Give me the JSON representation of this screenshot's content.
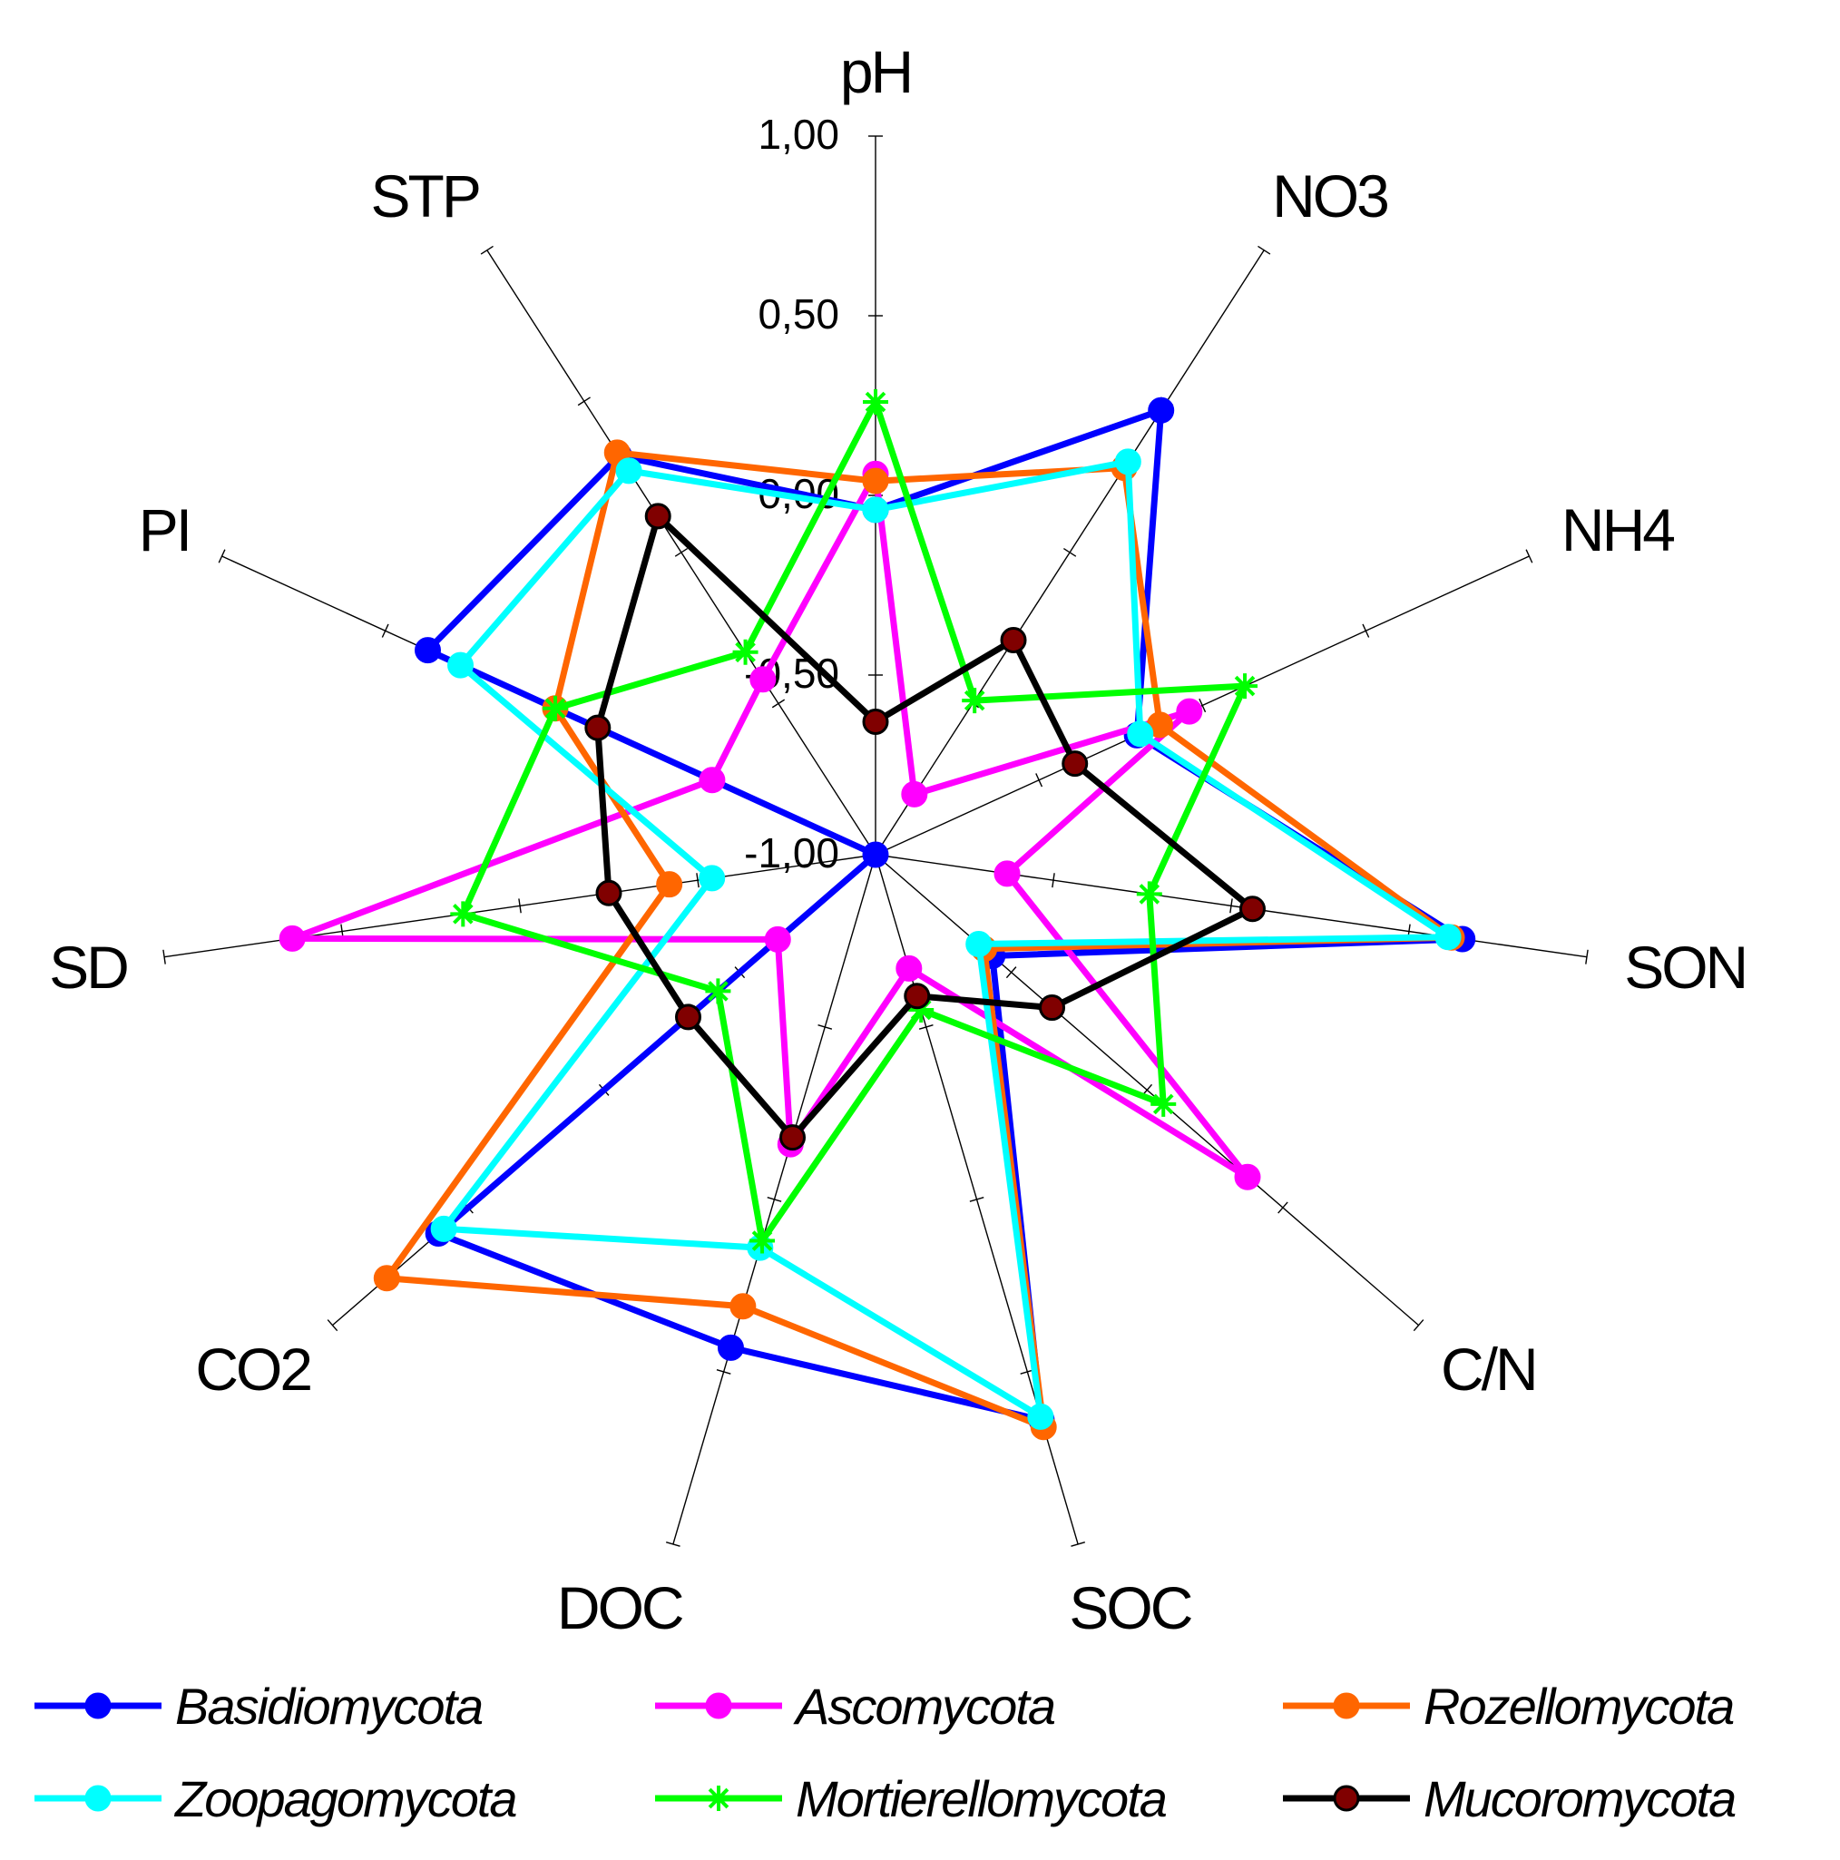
{
  "chart_data": {
    "type": "radar",
    "axes": [
      "pH",
      "NO3",
      "NH4",
      "SON",
      "C/N",
      "SOC",
      "DOC",
      "CO2",
      "SD",
      "PI",
      "STP"
    ],
    "rlim": [
      -1.0,
      1.0
    ],
    "tick_values": [
      1.0,
      0.5,
      0.0,
      -0.5,
      -1.0
    ],
    "tick_labels": [
      "1,00",
      "0,50",
      "0,00",
      "-0,50",
      "-1,00"
    ],
    "grid": false,
    "legend_position": "bottom",
    "series": [
      {
        "name": "Basidiomycota",
        "color": "#0000ff",
        "marker": "circle",
        "values": [
          -0.04,
          0.47,
          -0.2,
          0.65,
          -0.57,
          0.64,
          0.43,
          0.61,
          -1.0,
          0.37,
          0.32
        ]
      },
      {
        "name": "Ascomycota",
        "color": "#ff00ff",
        "marker": "circle",
        "values": [
          0.06,
          -0.8,
          -0.04,
          -0.63,
          0.37,
          -0.67,
          -0.16,
          -0.64,
          0.64,
          -0.5,
          -0.42
        ]
      },
      {
        "name": "Rozellomycota",
        "color": "#ff6600",
        "marker": "circle",
        "values": [
          0.04,
          0.28,
          -0.13,
          0.62,
          -0.6,
          0.66,
          0.31,
          0.8,
          -0.42,
          -0.02,
          0.33
        ]
      },
      {
        "name": "Zoopagomycota",
        "color": "#00ffff",
        "marker": "circle",
        "values": [
          -0.04,
          0.3,
          -0.19,
          0.61,
          -0.62,
          0.63,
          0.14,
          0.59,
          -0.54,
          0.27,
          0.27
        ]
      },
      {
        "name": "Mortierellomycota",
        "color": "#00ff00",
        "marker": "star",
        "values": [
          0.26,
          -0.49,
          0.13,
          -0.23,
          0.06,
          -0.55,
          0.12,
          -0.42,
          0.16,
          -0.02,
          -0.33
        ]
      },
      {
        "name": "Mucoromycota",
        "color": "#000000",
        "marker-fill": "#800000",
        "marker": "circle",
        "values": [
          -0.63,
          -0.29,
          -0.39,
          0.06,
          -0.35,
          -0.59,
          -0.18,
          -0.31,
          -0.25,
          -0.15,
          0.12
        ]
      }
    ]
  }
}
